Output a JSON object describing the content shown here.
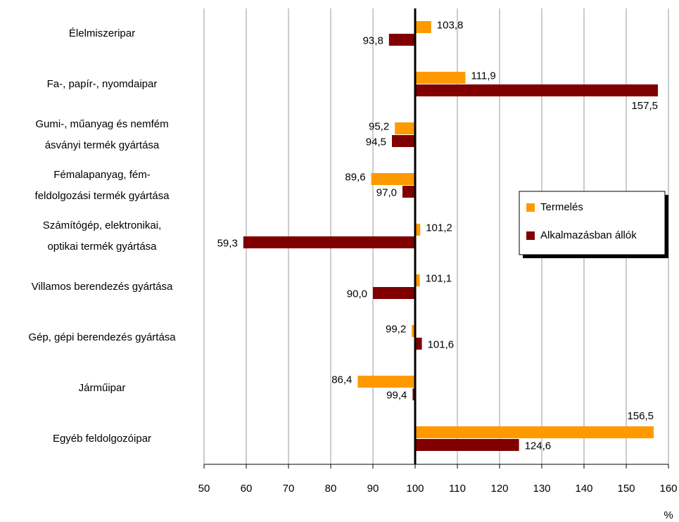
{
  "chart_data": {
    "type": "bar",
    "orientation": "horizontal",
    "baseline": 100,
    "x_axis_label": "%",
    "categories": [
      "Élelmiszeripar",
      "Fa-, papír-, nyomdaipar",
      "Gumi-, műanyag és nemfém\násványi termék gyártása",
      "Fémalapanyag, fém-\nfeldolgozási termék gyártása",
      "Számítógép, elektronikai,\noptikai termék gyártása",
      "Villamos berendezés gyártása",
      "Gép, gépi berendezés gyártása",
      "Járműipar",
      "Egyéb feldolgozóipar"
    ],
    "series": [
      {
        "name": "Termelés",
        "color": "#ff9900",
        "values": [
          103.8,
          111.9,
          95.2,
          89.6,
          101.2,
          101.1,
          99.2,
          86.4,
          156.5
        ],
        "value_labels": [
          "103,8",
          "111,9",
          "95,2",
          "89,6",
          "101,2",
          "101,1",
          "99,2",
          "86,4",
          "156,5"
        ]
      },
      {
        "name": "Alkalmazásban állók",
        "color": "#800000",
        "values": [
          93.8,
          157.5,
          94.5,
          97.0,
          59.3,
          90.0,
          101.6,
          99.4,
          124.6
        ],
        "value_labels": [
          "93,8",
          "157,5",
          "94,5",
          "97,0",
          "59,3",
          "90,0",
          "101,6",
          "99,4",
          "124,6"
        ]
      }
    ],
    "xlim": [
      50,
      160
    ],
    "xticks": [
      50,
      60,
      70,
      80,
      90,
      100,
      110,
      120,
      130,
      140,
      150,
      160
    ],
    "grid": true,
    "legend": "right"
  }
}
